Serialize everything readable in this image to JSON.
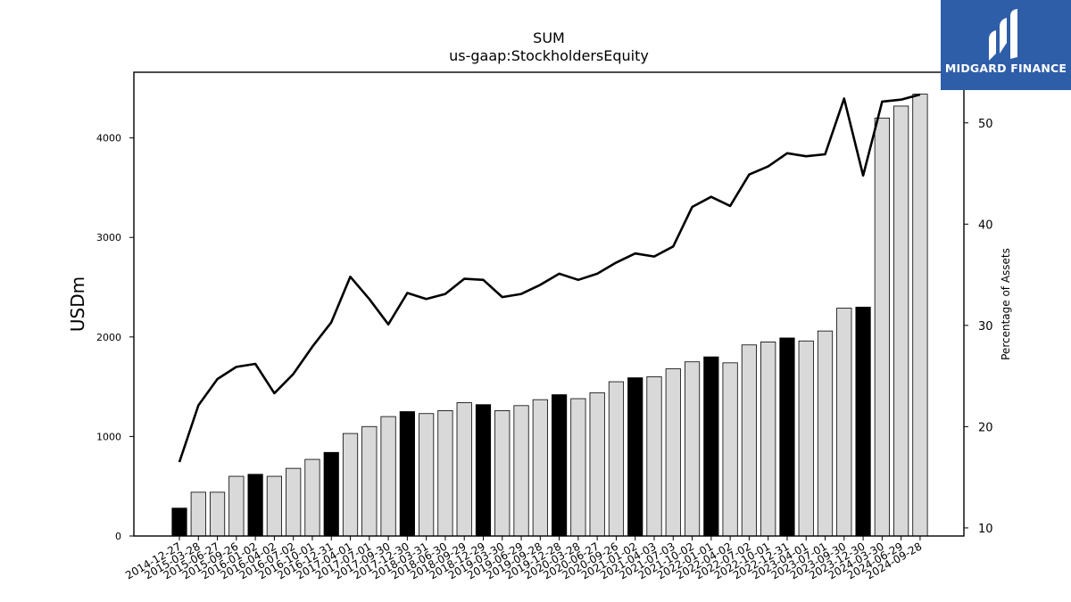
{
  "brand": {
    "name": "MIDGARD FINANCE",
    "color": "#2f5ea9"
  },
  "chart_data": {
    "type": "bar",
    "title": "SUM",
    "subtitle": "us-gaap:StockholdersEquity",
    "ylabel": "USDm",
    "y2label": "Percentage of Assets",
    "ylim": [
      0,
      4660
    ],
    "y2lim": [
      9.2,
      55.0
    ],
    "yticks": [
      0,
      1000,
      2000,
      3000,
      4000
    ],
    "y2ticks": [
      10,
      20,
      30,
      40,
      50
    ],
    "grid": false,
    "colors": {
      "bar_fill": "#d9d9d9",
      "bar_highlight": "#000000",
      "line": "#000000"
    },
    "categories": [
      "2014-12-27",
      "2015-03-28",
      "2015-06-27",
      "2015-09-26",
      "2016-01-02",
      "2016-04-02",
      "2016-07-02",
      "2016-10-01",
      "2016-12-31",
      "2017-04-01",
      "2017-07-01",
      "2017-09-30",
      "2017-12-30",
      "2018-03-31",
      "2018-06-30",
      "2018-09-29",
      "2018-12-29",
      "2019-03-30",
      "2019-06-29",
      "2019-09-28",
      "2019-12-28",
      "2020-03-28",
      "2020-06-27",
      "2020-09-26",
      "2021-01-02",
      "2021-04-03",
      "2021-07-03",
      "2021-10-02",
      "2022-01-01",
      "2022-04-02",
      "2022-07-02",
      "2022-10-01",
      "2022-12-31",
      "2023-04-01",
      "2023-07-01",
      "2023-09-30",
      "2023-12-30",
      "2024-03-30",
      "2024-06-29",
      "2024-09-28"
    ],
    "series": [
      {
        "name": "",
        "kind": "bar",
        "axis": "left",
        "values": [
          280,
          440,
          440,
          600,
          620,
          600,
          680,
          770,
          840,
          1030,
          1100,
          1200,
          1250,
          1230,
          1260,
          1340,
          1320,
          1260,
          1310,
          1370,
          1420,
          1380,
          1440,
          1550,
          1590,
          1600,
          1680,
          1750,
          1800,
          1740,
          1920,
          1950,
          1990,
          1960,
          2060,
          2290,
          2300,
          4200,
          4320,
          4440
        ],
        "highlighted": [
          true,
          false,
          false,
          false,
          true,
          false,
          false,
          false,
          true,
          false,
          false,
          false,
          true,
          false,
          false,
          false,
          true,
          false,
          false,
          false,
          true,
          false,
          false,
          false,
          true,
          false,
          false,
          false,
          true,
          false,
          false,
          false,
          true,
          false,
          false,
          false,
          true,
          false,
          false,
          false
        ]
      },
      {
        "name": "",
        "kind": "line",
        "axis": "right",
        "values": [
          16.5,
          22.1,
          24.7,
          25.9,
          26.2,
          23.3,
          25.2,
          27.9,
          30.3,
          34.8,
          32.6,
          30.1,
          33.2,
          32.6,
          33.1,
          34.6,
          34.5,
          32.8,
          33.1,
          34.0,
          35.1,
          34.5,
          35.1,
          36.2,
          37.1,
          36.8,
          37.8,
          41.7,
          42.7,
          41.8,
          44.9,
          45.7,
          47.0,
          46.7,
          46.9,
          52.4,
          44.8,
          52.1,
          52.3,
          52.8
        ]
      }
    ]
  }
}
